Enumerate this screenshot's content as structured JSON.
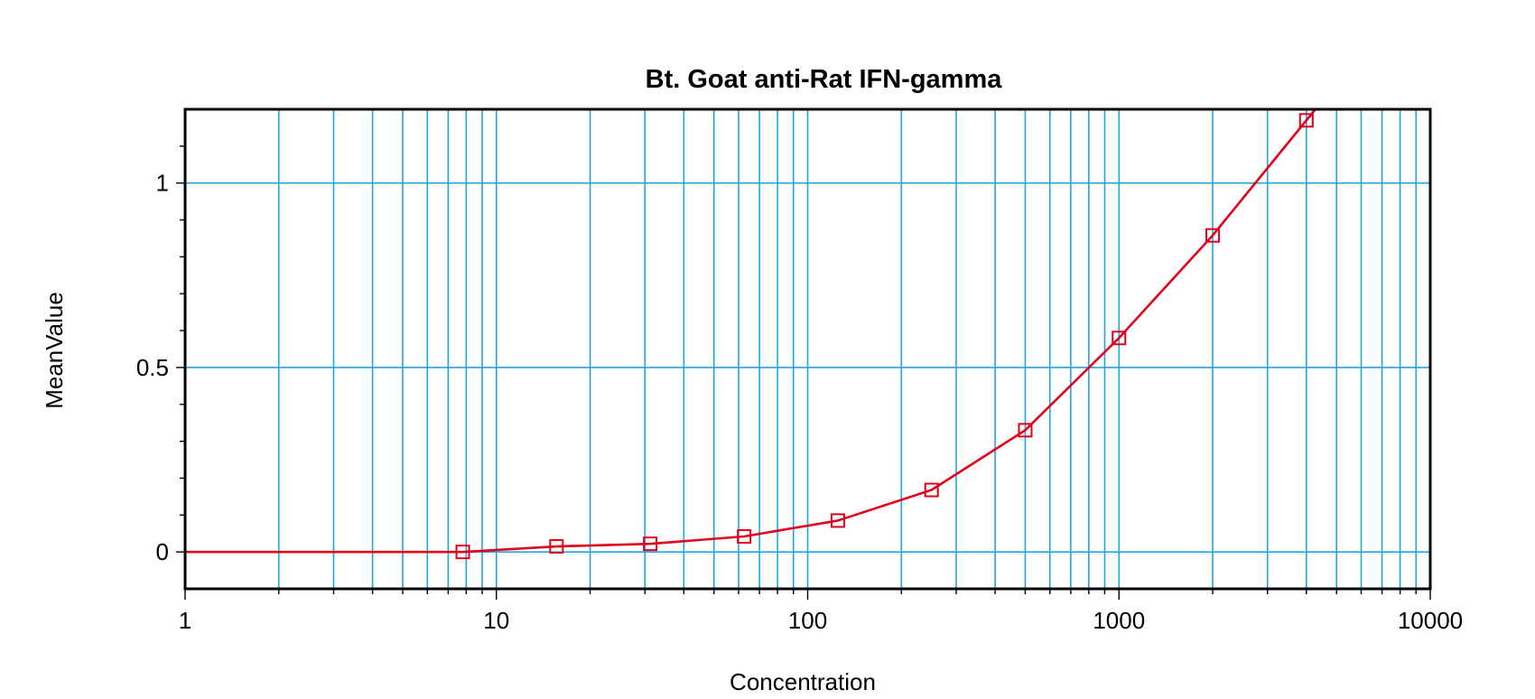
{
  "chart_data": {
    "type": "scatter",
    "title": "Bt. Goat anti-Rat IFN-gamma",
    "xlabel": "Concentration",
    "ylabel": "MeanValue",
    "x_scale": "log",
    "xlim": [
      1,
      10000
    ],
    "ylim": [
      -0.1,
      1.2
    ],
    "x_ticks": [
      1,
      10,
      100,
      1000,
      10000
    ],
    "x_tick_labels": [
      "1",
      "10",
      "100",
      "1000",
      "10000"
    ],
    "y_ticks": [
      0,
      0.5,
      1
    ],
    "y_tick_labels": [
      "0",
      "0.5",
      "1"
    ],
    "y_minor_step": 0.1,
    "grid": true,
    "legend": "none",
    "series": [
      {
        "marker": "square",
        "fit": "smooth curve",
        "points": [
          {
            "x": 7.8,
            "y": 0.0
          },
          {
            "x": 15.6,
            "y": 0.015
          },
          {
            "x": 31.2,
            "y": 0.022
          },
          {
            "x": 62.5,
            "y": 0.042
          },
          {
            "x": 125,
            "y": 0.085
          },
          {
            "x": 250,
            "y": 0.168
          },
          {
            "x": 500,
            "y": 0.33
          },
          {
            "x": 1000,
            "y": 0.58
          },
          {
            "x": 2000,
            "y": 0.858
          },
          {
            "x": 4000,
            "y": 1.17
          }
        ]
      }
    ],
    "colors": {
      "series": "#e0001b",
      "grid": "#22a6e0",
      "axis": "#000000"
    }
  }
}
